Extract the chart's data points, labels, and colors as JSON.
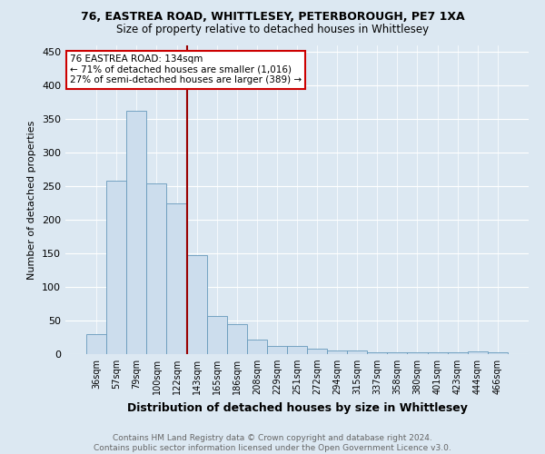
{
  "title1": "76, EASTREA ROAD, WHITTLESEY, PETERBOROUGH, PE7 1XA",
  "title2": "Size of property relative to detached houses in Whittlesey",
  "xlabel": "Distribution of detached houses by size in Whittlesey",
  "ylabel": "Number of detached properties",
  "annotation_line1": "76 EASTREA ROAD: 134sqm",
  "annotation_line2": "← 71% of detached houses are smaller (1,016)",
  "annotation_line3": "27% of semi-detached houses are larger (389) →",
  "categories": [
    "36sqm",
    "57sqm",
    "79sqm",
    "100sqm",
    "122sqm",
    "143sqm",
    "165sqm",
    "186sqm",
    "208sqm",
    "229sqm",
    "251sqm",
    "272sqm",
    "294sqm",
    "315sqm",
    "337sqm",
    "358sqm",
    "380sqm",
    "401sqm",
    "423sqm",
    "444sqm",
    "466sqm"
  ],
  "values": [
    30,
    258,
    362,
    255,
    225,
    147,
    57,
    44,
    22,
    12,
    12,
    8,
    6,
    5,
    3,
    3,
    3,
    3,
    3,
    4,
    3
  ],
  "bar_color": "#ccdded",
  "bar_edge_color": "#6699bb",
  "vline_color": "#990000",
  "ylim": [
    0,
    460
  ],
  "yticks": [
    0,
    50,
    100,
    150,
    200,
    250,
    300,
    350,
    400,
    450
  ],
  "footnote": "Contains HM Land Registry data © Crown copyright and database right 2024.\nContains public sector information licensed under the Open Government Licence v3.0.",
  "bg_color": "#dce8f2",
  "plot_bg_color": "#dce8f2",
  "annotation_box_color": "#ffffff",
  "annotation_box_edge": "#cc0000",
  "title_fontsize": 9,
  "subtitle_fontsize": 8.5,
  "ylabel_fontsize": 8,
  "xlabel_fontsize": 9,
  "tick_fontsize": 7,
  "annot_fontsize": 7.5,
  "footnote_fontsize": 6.5,
  "footnote_color": "#666666"
}
